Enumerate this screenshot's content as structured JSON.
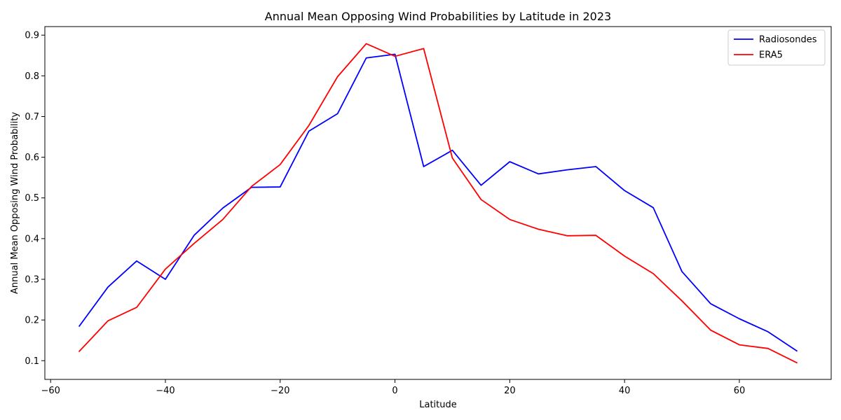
{
  "chart_data": {
    "type": "line",
    "title": "Annual Mean Opposing Wind Probabilities by Latitude in 2023",
    "xlabel": "Latitude",
    "ylabel": "Annual Mean Opposing Wind Probability",
    "xlim": [
      -61,
      76
    ],
    "ylim": [
      0.054,
      0.921
    ],
    "xticks": [
      -60,
      -40,
      -20,
      0,
      20,
      40,
      60
    ],
    "yticks": [
      0.1,
      0.2,
      0.3,
      0.4,
      0.5,
      0.6,
      0.7,
      0.8,
      0.9
    ],
    "grid": false,
    "legend_position": "top-right",
    "x": [
      -55,
      -50,
      -45,
      -40,
      -35,
      -30,
      -25,
      -20,
      -15,
      -10,
      -5,
      0,
      5,
      10,
      15,
      20,
      25,
      30,
      35,
      40,
      45,
      50,
      55,
      60,
      65,
      70
    ],
    "series": [
      {
        "name": "Radiosondes",
        "color": "#0000ff",
        "values": [
          0.185,
          0.281,
          0.345,
          0.3,
          0.408,
          0.475,
          0.526,
          0.527,
          0.664,
          0.707,
          0.844,
          0.853,
          0.577,
          0.617,
          0.531,
          0.589,
          0.559,
          0.569,
          0.577,
          0.518,
          0.476,
          0.319,
          0.24,
          0.203,
          0.171,
          0.124
        ]
      },
      {
        "name": "ERA5",
        "color": "#ff0000",
        "values": [
          0.123,
          0.198,
          0.231,
          0.325,
          0.388,
          0.447,
          0.528,
          0.582,
          0.678,
          0.798,
          0.879,
          0.848,
          0.867,
          0.598,
          0.496,
          0.447,
          0.423,
          0.407,
          0.408,
          0.357,
          0.314,
          0.247,
          0.175,
          0.139,
          0.13,
          0.095
        ]
      }
    ]
  }
}
